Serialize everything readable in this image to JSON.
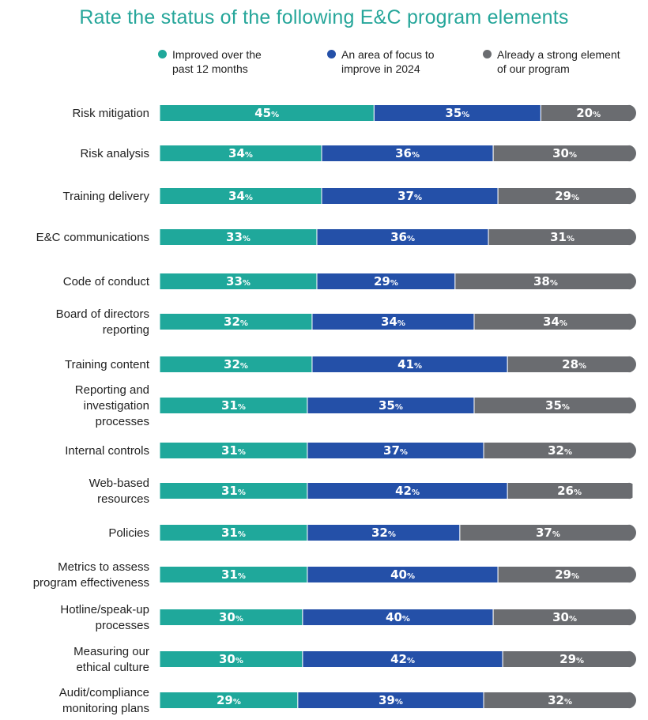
{
  "chart_data": {
    "type": "bar",
    "orientation": "horizontal",
    "stacked": true,
    "title": "Rate the status of the following E&C program elements",
    "xlim": [
      0,
      100
    ],
    "value_suffix": "%",
    "categories": [
      [
        "Risk mitigation"
      ],
      [
        "Risk analysis"
      ],
      [
        "Training delivery"
      ],
      [
        "E&C communications"
      ],
      [
        "Code of conduct"
      ],
      [
        "Board of directors",
        "reporting"
      ],
      [
        "Training content"
      ],
      [
        "Reporting and",
        "investigation",
        "processes"
      ],
      [
        "Internal controls"
      ],
      [
        "Web-based",
        "resources"
      ],
      [
        "Policies"
      ],
      [
        "Metrics to assess",
        "program effectiveness"
      ],
      [
        "Hotline/speak-up",
        "processes"
      ],
      [
        "Measuring our",
        "ethical culture"
      ],
      [
        "Audit/compliance",
        "monitoring plans"
      ]
    ],
    "series": [
      {
        "name": "Improved over the\npast 12 months",
        "color": "#1fa89b",
        "values": [
          45,
          34,
          34,
          33,
          33,
          32,
          32,
          31,
          31,
          31,
          31,
          31,
          30,
          30,
          29
        ]
      },
      {
        "name": "An area of focus to\nimprove in 2024",
        "color": "#2450a8",
        "values": [
          35,
          36,
          37,
          36,
          29,
          34,
          41,
          35,
          37,
          42,
          32,
          40,
          40,
          42,
          39
        ]
      },
      {
        "name": "Already a strong element\nof our program",
        "color": "#6a6c70",
        "values": [
          20,
          30,
          29,
          31,
          38,
          34,
          28,
          35,
          32,
          26,
          37,
          29,
          30,
          29,
          32
        ]
      }
    ],
    "legend_position": "top",
    "grid": false
  }
}
